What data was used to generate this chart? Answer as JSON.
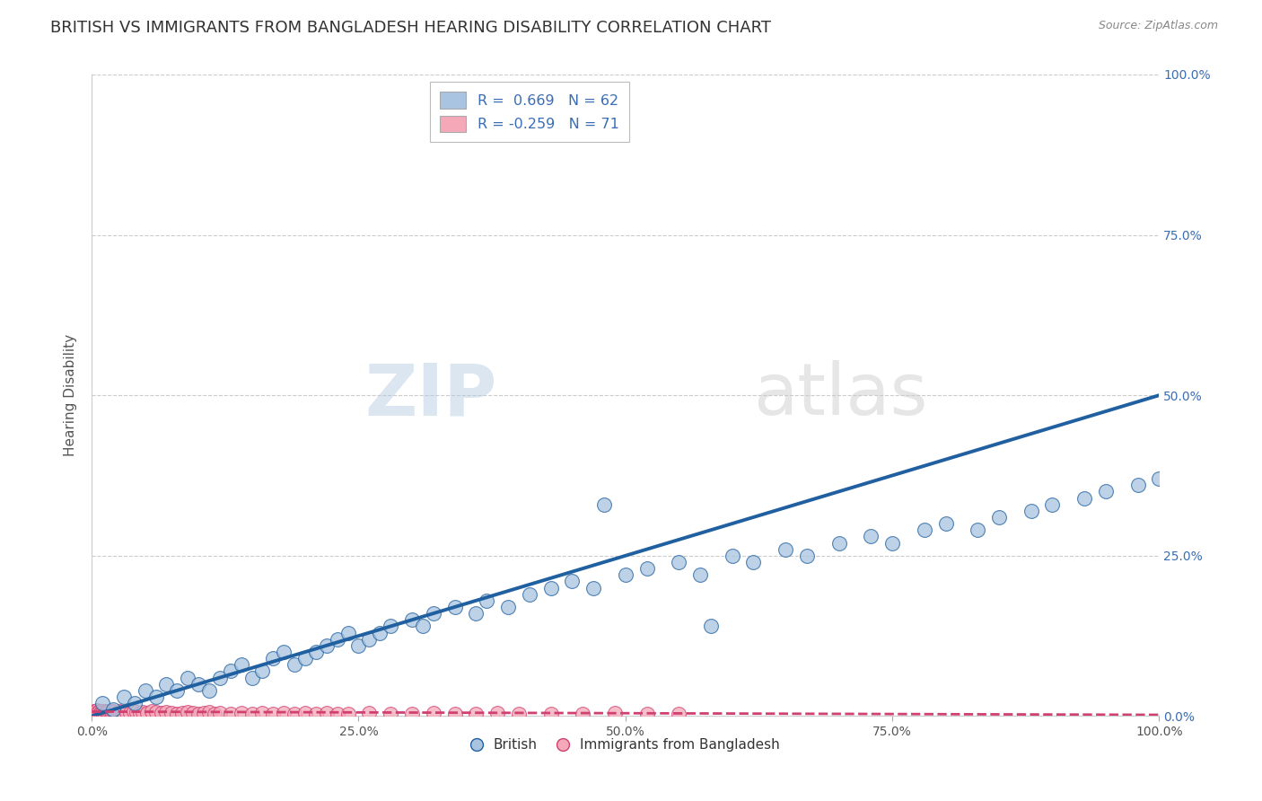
{
  "title": "BRITISH VS IMMIGRANTS FROM BANGLADESH HEARING DISABILITY CORRELATION CHART",
  "source": "Source: ZipAtlas.com",
  "ylabel": "Hearing Disability",
  "xlim": [
    0.0,
    1.0
  ],
  "ylim": [
    0.0,
    1.0
  ],
  "british_R": 0.669,
  "british_N": 62,
  "bangladesh_R": -0.259,
  "bangladesh_N": 71,
  "british_color": "#a8c4e0",
  "british_line_color": "#2060a0",
  "bangladesh_color": "#f4a8b8",
  "bangladesh_line_color": "#d04070",
  "legend_text_color": "#3a6db5",
  "background_color": "#ffffff",
  "grid_color": "#cccccc",
  "title_fontsize": 13,
  "axis_label_fontsize": 11,
  "tick_fontsize": 10,
  "brit_x": [
    0.01,
    0.02,
    0.03,
    0.04,
    0.05,
    0.06,
    0.07,
    0.08,
    0.09,
    0.1,
    0.11,
    0.12,
    0.13,
    0.14,
    0.15,
    0.16,
    0.17,
    0.18,
    0.19,
    0.2,
    0.21,
    0.22,
    0.23,
    0.24,
    0.25,
    0.26,
    0.27,
    0.28,
    0.3,
    0.31,
    0.32,
    0.34,
    0.36,
    0.37,
    0.39,
    0.41,
    0.43,
    0.45,
    0.47,
    0.5,
    0.52,
    0.55,
    0.57,
    0.6,
    0.62,
    0.65,
    0.67,
    0.7,
    0.73,
    0.75,
    0.78,
    0.8,
    0.83,
    0.85,
    0.88,
    0.9,
    0.93,
    0.95,
    0.98,
    1.0,
    0.48,
    0.58
  ],
  "brit_y": [
    0.02,
    0.01,
    0.03,
    0.02,
    0.04,
    0.03,
    0.05,
    0.04,
    0.06,
    0.05,
    0.04,
    0.06,
    0.07,
    0.08,
    0.06,
    0.07,
    0.09,
    0.1,
    0.08,
    0.09,
    0.1,
    0.11,
    0.12,
    0.13,
    0.11,
    0.12,
    0.13,
    0.14,
    0.15,
    0.14,
    0.16,
    0.17,
    0.16,
    0.18,
    0.17,
    0.19,
    0.2,
    0.21,
    0.2,
    0.22,
    0.23,
    0.24,
    0.22,
    0.25,
    0.24,
    0.26,
    0.25,
    0.27,
    0.28,
    0.27,
    0.29,
    0.3,
    0.29,
    0.31,
    0.32,
    0.33,
    0.34,
    0.35,
    0.36,
    0.37,
    0.33,
    0.14
  ],
  "bang_x": [
    0.001,
    0.002,
    0.003,
    0.004,
    0.005,
    0.006,
    0.007,
    0.008,
    0.009,
    0.01,
    0.011,
    0.012,
    0.013,
    0.014,
    0.015,
    0.016,
    0.017,
    0.018,
    0.019,
    0.02,
    0.022,
    0.024,
    0.026,
    0.028,
    0.03,
    0.033,
    0.036,
    0.039,
    0.042,
    0.045,
    0.048,
    0.052,
    0.056,
    0.06,
    0.065,
    0.07,
    0.075,
    0.08,
    0.085,
    0.09,
    0.095,
    0.1,
    0.105,
    0.11,
    0.115,
    0.12,
    0.13,
    0.14,
    0.15,
    0.16,
    0.17,
    0.18,
    0.19,
    0.2,
    0.21,
    0.22,
    0.23,
    0.24,
    0.26,
    0.28,
    0.3,
    0.32,
    0.34,
    0.36,
    0.38,
    0.4,
    0.43,
    0.46,
    0.49,
    0.52,
    0.55
  ],
  "bang_y": [
    0.006,
    0.008,
    0.005,
    0.007,
    0.009,
    0.006,
    0.008,
    0.005,
    0.007,
    0.006,
    0.008,
    0.005,
    0.007,
    0.006,
    0.008,
    0.005,
    0.007,
    0.006,
    0.005,
    0.007,
    0.006,
    0.005,
    0.007,
    0.006,
    0.005,
    0.006,
    0.005,
    0.007,
    0.006,
    0.005,
    0.006,
    0.005,
    0.007,
    0.006,
    0.005,
    0.006,
    0.005,
    0.004,
    0.005,
    0.006,
    0.005,
    0.004,
    0.005,
    0.006,
    0.004,
    0.005,
    0.004,
    0.005,
    0.004,
    0.005,
    0.004,
    0.005,
    0.004,
    0.005,
    0.004,
    0.005,
    0.004,
    0.004,
    0.005,
    0.004,
    0.004,
    0.005,
    0.004,
    0.004,
    0.005,
    0.004,
    0.004,
    0.004,
    0.005,
    0.004,
    0.004
  ],
  "brit_line_x0": 0.0,
  "brit_line_x1": 1.0,
  "brit_line_y0": 0.0,
  "brit_line_y1": 0.5,
  "bang_line_x0": 0.0,
  "bang_line_x1": 1.0,
  "bang_line_y0": 0.007,
  "bang_line_y1": 0.002
}
